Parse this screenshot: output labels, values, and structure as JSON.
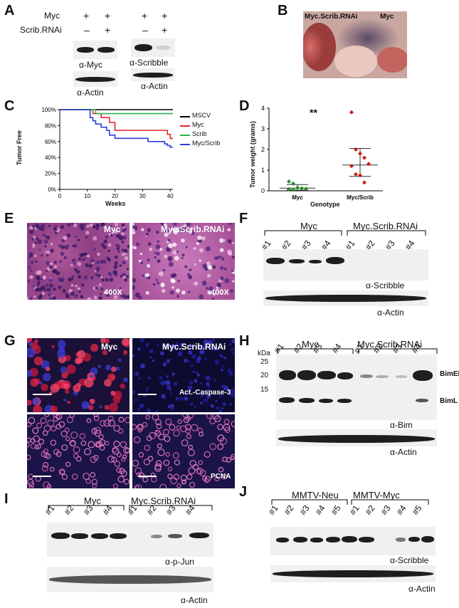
{
  "panels": [
    "A",
    "B",
    "C",
    "D",
    "E",
    "F",
    "G",
    "H",
    "I",
    "J"
  ],
  "A": {
    "rows": [
      {
        "label": "Myc",
        "marks_left": [
          "+",
          "+"
        ],
        "marks_right": [
          "+",
          "+"
        ]
      },
      {
        "label": "Scrib.RNAi",
        "marks_left": [
          "–",
          "+"
        ],
        "marks_right": [
          "–",
          "+"
        ]
      }
    ],
    "blots": [
      "α-Myc",
      "α-Actin",
      "α-Scribble",
      "α-Actin"
    ]
  },
  "B": {
    "labels": [
      "Myc.Scrib.RNAi",
      "Myc"
    ]
  },
  "C": {
    "ylabel": "Tumor Free",
    "xlabel": "Weeks",
    "yticks": [
      "100%",
      "80%",
      "60%",
      "40%",
      "20%",
      "0%"
    ],
    "xticks": [
      "0",
      "10",
      "20",
      "30",
      "40"
    ],
    "legend": [
      {
        "name": "MSCV",
        "color": "#000000"
      },
      {
        "name": "Myc",
        "color": "#e8262b"
      },
      {
        "name": "Scrib",
        "color": "#2bb34a"
      },
      {
        "name": "Myc/Scrib",
        "color": "#2b3fd6"
      }
    ]
  },
  "D": {
    "ylabel": "Tumor weight (grams)",
    "xlabel": "Genotype",
    "categories": [
      "Myc",
      "Myc/Scrib"
    ],
    "yticks": [
      "0",
      "1",
      "2",
      "3",
      "4"
    ],
    "significance": "**"
  },
  "chart_data": [
    {
      "type": "line",
      "ylabel": "Tumor Free",
      "xlabel": "Weeks",
      "xlim": [
        0,
        41
      ],
      "ylim": [
        0,
        100
      ],
      "series": [
        {
          "name": "MSCV",
          "color": "#000000",
          "x": [
            0,
            41
          ],
          "y": [
            100,
            100
          ]
        },
        {
          "name": "Myc",
          "color": "#e8262b",
          "x": [
            0,
            9,
            12,
            14,
            15,
            18,
            20,
            30,
            39,
            40,
            41
          ],
          "y": [
            100,
            100,
            95,
            95,
            90,
            84,
            74,
            74,
            69,
            64,
            64
          ]
        },
        {
          "name": "Scrib",
          "color": "#2bb34a",
          "x": [
            0,
            13,
            24,
            41
          ],
          "y": [
            100,
            95,
            95,
            95
          ]
        },
        {
          "name": "Myc/Scrib",
          "color": "#2b3fd6",
          "x": [
            0,
            9,
            11,
            12,
            13,
            14,
            15,
            17,
            18,
            20,
            32,
            38,
            39,
            40,
            41
          ],
          "y": [
            100,
            100,
            90,
            86,
            82,
            82,
            78,
            74,
            68,
            64,
            60,
            57,
            55,
            53,
            53
          ]
        }
      ]
    },
    {
      "type": "scatter",
      "ylabel": "Tumor weight (grams)",
      "xlabel": "Genotype",
      "categories": [
        "Myc",
        "Myc/Scrib"
      ],
      "ylim": [
        0,
        4
      ],
      "series": [
        {
          "category": "Myc",
          "color": "#2e8b2e",
          "values": [
            0.45,
            0.35,
            0.15,
            0.12,
            0.1,
            0.08,
            0.05
          ],
          "mean": 0.13,
          "error": [
            0.03,
            0.3
          ]
        },
        {
          "category": "Myc/Scrib",
          "color": "#cc1a1a",
          "values": [
            3.8,
            2.0,
            1.8,
            1.6,
            1.3,
            1.2,
            0.8,
            0.75,
            0.4
          ],
          "mean": 1.25,
          "error": [
            0.7,
            2.05
          ]
        }
      ]
    }
  ],
  "E": {
    "labels": [
      "Myc",
      "Myc.Scrib.RNAi"
    ],
    "mag": [
      "400X",
      "400X"
    ]
  },
  "F": {
    "groups": [
      "Myc",
      "Myc.Scrib.RNAi"
    ],
    "lanes": [
      "#1",
      "#2",
      "#3",
      "#4",
      "#1",
      "#2",
      "#3",
      "#4"
    ],
    "blots": [
      "α-Scribble",
      "α-Actin"
    ]
  },
  "G": {
    "labels": [
      "Myc",
      "Myc.Scrib.RNAi"
    ],
    "stains": [
      "Act.-Caspase-3",
      "PCNA"
    ]
  },
  "H": {
    "groups": [
      "Myc",
      "Myc.Scrib.RNAi"
    ],
    "lanes": [
      "#1",
      "#2",
      "#3",
      "#4",
      "#1",
      "#2",
      "#3",
      "#4"
    ],
    "kda_label": "kDa",
    "kda": [
      "25",
      "20",
      "15"
    ],
    "bands": [
      "BimEL",
      "BimL"
    ],
    "blots": [
      "α-Bim",
      "α-Actin"
    ]
  },
  "I": {
    "groups": [
      "Myc",
      "Myc.Scrib.RNAi"
    ],
    "lanes": [
      "#1",
      "#2",
      "#3",
      "#4",
      "#1",
      "#2",
      "#3",
      "#4"
    ],
    "blots": [
      "α-p-Jun",
      "α-Actin"
    ]
  },
  "J": {
    "groups": [
      "MMTV-Neu",
      "MMTV-Myc"
    ],
    "lanes": [
      "#1",
      "#2",
      "#3",
      "#4",
      "#5",
      "#1",
      "#2",
      "#3",
      "#4",
      "#5"
    ],
    "blots": [
      "α-Scribble",
      "α-Actin"
    ]
  }
}
